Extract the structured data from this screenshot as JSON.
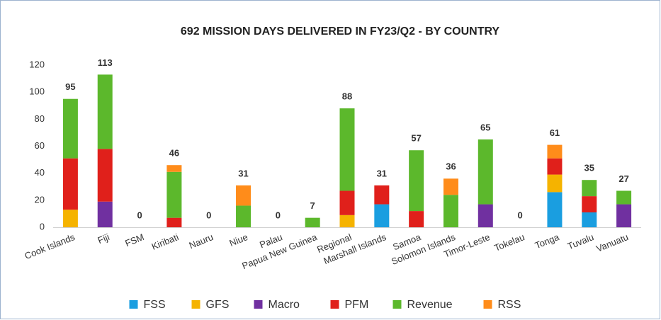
{
  "chart_data": {
    "type": "stacked_bar",
    "title": "692 MISSION DAYS DELIVERED IN FY23/Q2 - BY COUNTRY",
    "categories": [
      "Cook Islands",
      "Fiji",
      "FSM",
      "Kiribati",
      "Nauru",
      "Niue",
      "Palau",
      "Papua New Guinea",
      "Regional",
      "Marshall Islands",
      "Samoa",
      "Solomon Islands",
      "Timor-Leste",
      "Tokelau",
      "Tonga",
      "Tuvalu",
      "Vanuatu"
    ],
    "series": [
      {
        "name": "FSS",
        "color": "#1a9ee0",
        "values": [
          0,
          0,
          0,
          0,
          0,
          0,
          0,
          0,
          0,
          17,
          0,
          0,
          0,
          0,
          26,
          11,
          0
        ]
      },
      {
        "name": "GFS",
        "color": "#f5b300",
        "values": [
          13,
          0,
          0,
          0,
          0,
          0,
          0,
          0,
          9,
          0,
          0,
          0,
          0,
          0,
          13,
          0,
          0
        ]
      },
      {
        "name": "Macro",
        "color": "#7030a0",
        "values": [
          0,
          19,
          0,
          0,
          0,
          0,
          0,
          0,
          0,
          0,
          0,
          0,
          17,
          0,
          0,
          0,
          17
        ]
      },
      {
        "name": "PFM",
        "color": "#e0201b",
        "values": [
          38,
          39,
          0,
          7,
          0,
          0,
          0,
          0,
          18,
          14,
          12,
          0,
          0,
          0,
          12,
          12,
          0
        ]
      },
      {
        "name": "Revenue",
        "color": "#5cb82c",
        "values": [
          44,
          55,
          0,
          34,
          0,
          16,
          0,
          7,
          61,
          0,
          45,
          24,
          48,
          0,
          0,
          12,
          10
        ]
      },
      {
        "name": "RSS",
        "color": "#ff8c1a",
        "values": [
          0,
          0,
          0,
          5,
          0,
          15,
          0,
          0,
          0,
          0,
          0,
          12,
          0,
          0,
          10,
          0,
          0
        ]
      }
    ],
    "totals": [
      95,
      113,
      0,
      46,
      0,
      31,
      0,
      7,
      88,
      31,
      57,
      36,
      65,
      0,
      61,
      35,
      27
    ],
    "ylim": [
      0,
      120
    ],
    "yticks": [
      0,
      20,
      40,
      60,
      80,
      100,
      120
    ],
    "grid": false
  }
}
